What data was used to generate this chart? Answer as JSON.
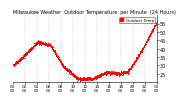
{
  "title": "Milwaukee Weather  Outdoor Temperature  per Minute  (24 Hours)",
  "line_color": "#ff0000",
  "bg_color": "#ffffff",
  "ylim": [
    20,
    60
  ],
  "yticks": [
    25,
    30,
    35,
    40,
    45,
    50,
    55
  ],
  "ylabel_fontsize": 3.5,
  "xlabel_fontsize": 3.0,
  "title_fontsize": 3.5,
  "marker_size": 0.5,
  "legend_label": "Outdoor Temp",
  "legend_color": "#ff0000",
  "legend_bg": "#ffffff",
  "legend_border": "#ff0000",
  "curve_points_x": [
    0,
    100,
    250,
    380,
    500,
    650,
    800,
    950,
    1050,
    1150,
    1280,
    1440
  ],
  "curve_points_y": [
    30,
    35,
    44,
    42,
    30,
    22,
    22,
    26,
    25,
    26,
    38,
    56
  ]
}
